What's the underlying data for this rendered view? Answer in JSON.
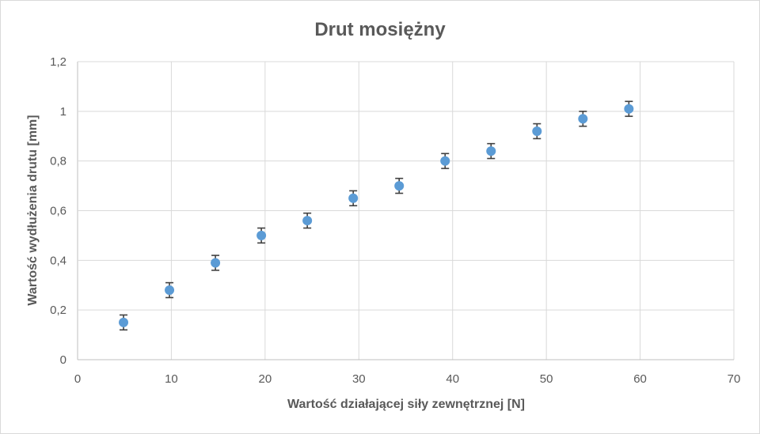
{
  "chart_data": {
    "type": "scatter",
    "title": "Drut mosiężny",
    "xlabel": "Wartość działającej siły zewnętrznej [N]",
    "ylabel": "Wartość wydłużenia drutu [mm]",
    "xlim": [
      0,
      70
    ],
    "ylim": [
      0,
      1.2
    ],
    "x_ticks": [
      "0",
      "10",
      "20",
      "30",
      "40",
      "50",
      "60",
      "70"
    ],
    "y_ticks": [
      "0",
      "0,2",
      "0,4",
      "0,6",
      "0,8",
      "1",
      "1,2"
    ],
    "grid": true,
    "legend": "none",
    "marker_color": "#5b9bd5",
    "series": [
      {
        "x": [
          4.9,
          9.8,
          14.7,
          19.6,
          24.5,
          29.4,
          34.3,
          39.2,
          44.1,
          49.0,
          53.9,
          58.8
        ],
        "y": [
          0.15,
          0.28,
          0.39,
          0.5,
          0.56,
          0.65,
          0.7,
          0.8,
          0.84,
          0.92,
          0.97,
          1.01
        ],
        "y_error": 0.03
      }
    ]
  }
}
